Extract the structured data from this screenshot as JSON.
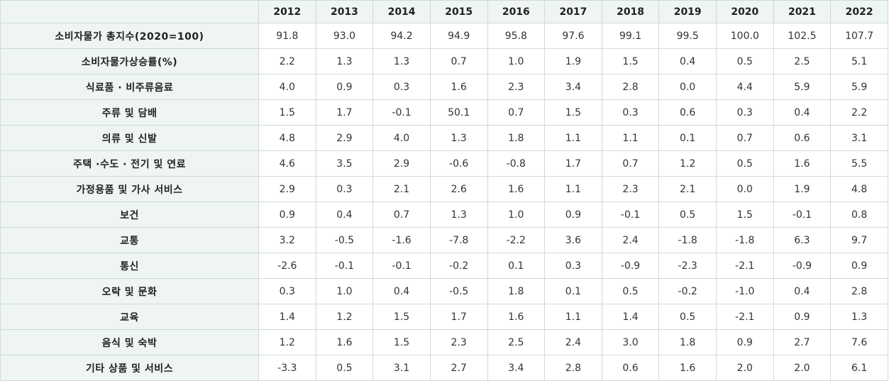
{
  "table": {
    "corner": "",
    "years": [
      "2012",
      "2013",
      "2014",
      "2015",
      "2016",
      "2017",
      "2018",
      "2019",
      "2020",
      "2021",
      "2022"
    ],
    "rows": [
      {
        "label": "소비자물가 총지수(2020=100)",
        "values": [
          "91.8",
          "93.0",
          "94.2",
          "94.9",
          "95.8",
          "97.6",
          "99.1",
          "99.5",
          "100.0",
          "102.5",
          "107.7"
        ]
      },
      {
        "label": "소비자물가상승률(%)",
        "values": [
          "2.2",
          "1.3",
          "1.3",
          "0.7",
          "1.0",
          "1.9",
          "1.5",
          "0.4",
          "0.5",
          "2.5",
          "5.1"
        ]
      },
      {
        "label": "식료품 · 비주류음료",
        "values": [
          "4.0",
          "0.9",
          "0.3",
          "1.6",
          "2.3",
          "3.4",
          "2.8",
          "0.0",
          "4.4",
          "5.9",
          "5.9"
        ]
      },
      {
        "label": "주류 및 담배",
        "values": [
          "1.5",
          "1.7",
          "-0.1",
          "50.1",
          "0.7",
          "1.5",
          "0.3",
          "0.6",
          "0.3",
          "0.4",
          "2.2"
        ]
      },
      {
        "label": "의류 및 신발",
        "values": [
          "4.8",
          "2.9",
          "4.0",
          "1.3",
          "1.8",
          "1.1",
          "1.1",
          "0.1",
          "0.7",
          "0.6",
          "3.1"
        ]
      },
      {
        "label": "주택 ·수도 · 전기 및 연료",
        "values": [
          "4.6",
          "3.5",
          "2.9",
          "-0.6",
          "-0.8",
          "1.7",
          "0.7",
          "1.2",
          "0.5",
          "1.6",
          "5.5"
        ]
      },
      {
        "label": "가정용품 및 가사 서비스",
        "values": [
          "2.9",
          "0.3",
          "2.1",
          "2.6",
          "1.6",
          "1.1",
          "2.3",
          "2.1",
          "0.0",
          "1.9",
          "4.8"
        ]
      },
      {
        "label": "보건",
        "values": [
          "0.9",
          "0.4",
          "0.7",
          "1.3",
          "1.0",
          "0.9",
          "-0.1",
          "0.5",
          "1.5",
          "-0.1",
          "0.8"
        ]
      },
      {
        "label": "교통",
        "values": [
          "3.2",
          "-0.5",
          "-1.6",
          "-7.8",
          "-2.2",
          "3.6",
          "2.4",
          "-1.8",
          "-1.8",
          "6.3",
          "9.7"
        ]
      },
      {
        "label": "통신",
        "values": [
          "-2.6",
          "-0.1",
          "-0.1",
          "-0.2",
          "0.1",
          "0.3",
          "-0.9",
          "-2.3",
          "-2.1",
          "-0.9",
          "0.9"
        ]
      },
      {
        "label": "오락 및 문화",
        "values": [
          "0.3",
          "1.0",
          "0.4",
          "-0.5",
          "1.8",
          "0.1",
          "0.5",
          "-0.2",
          "-1.0",
          "0.4",
          "2.8"
        ]
      },
      {
        "label": "교육",
        "values": [
          "1.4",
          "1.2",
          "1.5",
          "1.7",
          "1.6",
          "1.1",
          "1.4",
          "0.5",
          "-2.1",
          "0.9",
          "1.3"
        ]
      },
      {
        "label": "음식 및 숙박",
        "values": [
          "1.2",
          "1.6",
          "1.5",
          "2.3",
          "2.5",
          "2.4",
          "3.0",
          "1.8",
          "0.9",
          "2.7",
          "7.6"
        ]
      },
      {
        "label": "기타 상품 및 서비스",
        "values": [
          "-3.3",
          "0.5",
          "3.1",
          "2.7",
          "3.4",
          "2.8",
          "0.6",
          "1.6",
          "2.0",
          "2.0",
          "6.1"
        ]
      }
    ]
  }
}
